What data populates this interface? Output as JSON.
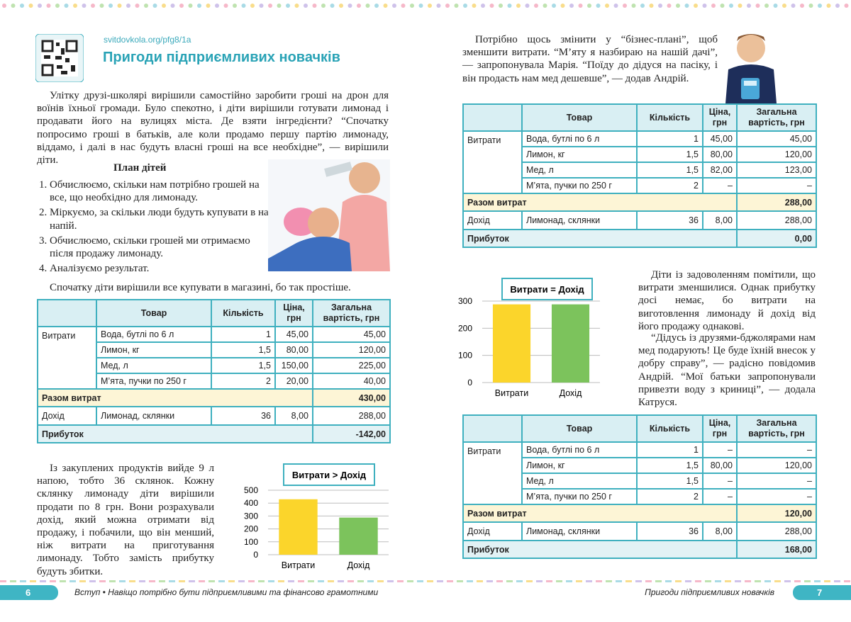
{
  "left": {
    "url": "svitdovkola.org/pfg8/1a",
    "title": "Пригоди підприємливих новачків",
    "intro": "Улітку друзі-школярі вирішили самостійно заробити гроші на дрон для воїнів їхньої громади. Було спекотно, і діти вирішили готувати лимонад і продавати його на вулицях міста. Де взяти інгредієнти? “Спочатку попросимо гроші в батьків, але коли продамо першу партію лимонаду, віддамо, і далі в нас будуть власні гроші на все необхідне”, — вирішили діти.",
    "plan_title": "План дітей",
    "plan": [
      "Обчислюємо, скільки нам потрібно грошей на все, що необхідно для лимонаду.",
      "Міркуємо, за скільки люди будуть купувати в нас напій.",
      "Обчислюємо, скільки грошей ми отримаємо після продажу лимонаду.",
      "Аналізуємо результат."
    ],
    "before_table": "Спочатку діти вирішили все купувати в магазині, бо так простіше.",
    "table": {
      "header": [
        "Товар",
        "Кількість",
        "Ціна, грн",
        "Загальна вартість, грн"
      ],
      "expenses": {
        "label": "Витрати",
        "items": [
          [
            "Вода, бутлі по 6 л",
            "1",
            "45,00",
            "45,00"
          ],
          [
            "Лимон, кг",
            "1,5",
            "80,00",
            "120,00"
          ],
          [
            "Мед, л",
            "1,5",
            "150,00",
            "225,00"
          ],
          [
            "М’ята, пучки по 250 г",
            "2",
            "20,00",
            "40,00"
          ]
        ]
      },
      "total": {
        "label": "Разом витрат",
        "value": "430,00"
      },
      "income": {
        "label": "Дохід",
        "item": "Лимонад, склянки",
        "qty": "36",
        "price": "8,00",
        "sum": "288,00"
      },
      "profit": {
        "label": "Прибуток",
        "value": "-142,00"
      }
    },
    "after_table": "Із закуплених продуктів вийде 9 л напою, тобто 36 склянок. Кожну склянку лимонаду діти вирішили продати по 8 грн. Вони розрахували дохід, який можна отримати від продажу, і побачили, що він менший, ніж витрати на приготування лимонаду. Тобто замість прибутку будуть збитки."
  },
  "right": {
    "intro": "Потрібно щось змінити у “бізнес-плані”, щоб зменшити витрати. “М’яту я назбираю на нашій дачі”, — запропонувала Марія. “Поїду до дідуся на пасіку, і він продасть нам мед дешевше”, — додав Андрій.",
    "table1": {
      "header": [
        "Товар",
        "Кількість",
        "Ціна, грн",
        "Загальна вартість, грн"
      ],
      "expenses": {
        "label": "Витрати",
        "items": [
          [
            "Вода, бутлі по 6 л",
            "1",
            "45,00",
            "45,00"
          ],
          [
            "Лимон, кг",
            "1,5",
            "80,00",
            "120,00"
          ],
          [
            "Мед, л",
            "1,5",
            "82,00",
            "123,00"
          ],
          [
            "М’ята, пучки по 250 г",
            "2",
            "–",
            "–"
          ]
        ]
      },
      "total": {
        "label": "Разом витрат",
        "value": "288,00"
      },
      "income": {
        "label": "Дохід",
        "item": "Лимонад, склянки",
        "qty": "36",
        "price": "8,00",
        "sum": "288,00"
      },
      "profit": {
        "label": "Прибуток",
        "value": "0,00"
      }
    },
    "para2": "Діти із задоволенням помітили, що витрати зменшилися. Однак прибутку досі немає, бо витрати на виготовлення лимонаду й дохід від його продажу однакові.",
    "para3": "“Дідусь із друзями-бджолярами нам мед подарують! Це буде їхній внесок у добру справу”, — радісно повідомив Андрій. “Мої батьки запропонували привезти воду з криниці”, — додала Катруся.",
    "table2": {
      "header": [
        "Товар",
        "Кількість",
        "Ціна, грн",
        "Загальна вартість, грн"
      ],
      "expenses": {
        "label": "Витрати",
        "items": [
          [
            "Вода, бутлі по 6 л",
            "1",
            "–",
            "–"
          ],
          [
            "Лимон, кг",
            "1,5",
            "80,00",
            "120,00"
          ],
          [
            "Мед, л",
            "1,5",
            "–",
            "–"
          ],
          [
            "М’ята, пучки по 250 г",
            "2",
            "–",
            "–"
          ]
        ]
      },
      "total": {
        "label": "Разом витрат",
        "value": "120,00"
      },
      "income": {
        "label": "Дохід",
        "item": "Лимонад, склянки",
        "qty": "36",
        "price": "8,00",
        "sum": "288,00"
      },
      "profit": {
        "label": "Прибуток",
        "value": "168,00"
      }
    }
  },
  "chart_data": [
    {
      "type": "bar",
      "title": "Витрати > Дохід",
      "categories": [
        "Витрати",
        "Дохід"
      ],
      "values": [
        430,
        288
      ],
      "colors": [
        "#fbd52b",
        "#7cc35c"
      ],
      "ylim": [
        0,
        500
      ],
      "yticks": [
        0,
        100,
        200,
        300,
        400,
        500
      ],
      "grid": true
    },
    {
      "type": "bar",
      "title": "Витрати = Дохід",
      "categories": [
        "Витрати",
        "Дохід"
      ],
      "values": [
        288,
        288
      ],
      "colors": [
        "#fbd52b",
        "#7cc35c"
      ],
      "ylim": [
        0,
        300
      ],
      "yticks": [
        0,
        100,
        200,
        300
      ],
      "grid": true
    }
  ],
  "footer": {
    "left_page": "6",
    "left_text": "Вступ • Навіщо потрібно бути підприємливими та фінансово грамотними",
    "right_text": "Пригоди підприємливих новачків",
    "right_page": "7"
  }
}
